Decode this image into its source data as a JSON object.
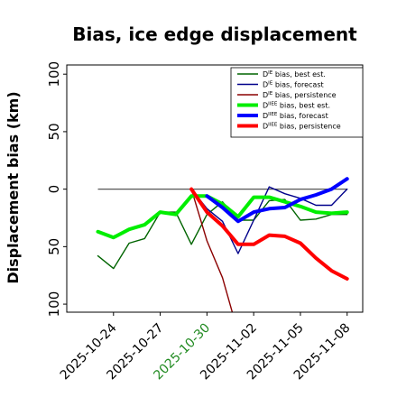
{
  "chart_data": {
    "type": "line",
    "title": "Bias, ice edge displacement",
    "xlabel": "",
    "ylabel": "Displacement bias (km)",
    "xlim": [
      "2025-10-21",
      "2025-11-09"
    ],
    "ylim": [
      -107,
      108
    ],
    "yticks": [
      100,
      50,
      0,
      -50,
      -100
    ],
    "yticklabels": [
      "100",
      "50",
      "0",
      "50",
      "100"
    ],
    "xticks": [
      "2025-10-24",
      "2025-10-27",
      "2025-10-30",
      "2025-11-02",
      "2025-11-05",
      "2025-11-08"
    ],
    "xticklabels": [
      "2025-10-24",
      "2025-10-27",
      "2025-10-30",
      "2025-11-02",
      "2025-11-05",
      "2025-11-08"
    ],
    "highlight_tick": "2025-10-30",
    "highlight_color": "#228b22",
    "grid": false,
    "legend_position": "top-right",
    "reference_line": {
      "y": 0,
      "x_start": "2025-10-23",
      "x_end": "2025-11-08",
      "color": "#555555"
    },
    "series": [
      {
        "name": "D^IE bias, best est.",
        "color": "#006400",
        "width": 1.4,
        "x": [
          "2025-10-23",
          "2025-10-24",
          "2025-10-25",
          "2025-10-26",
          "2025-10-27",
          "2025-10-28",
          "2025-10-29",
          "2025-10-30",
          "2025-10-31",
          "2025-11-01",
          "2025-11-02",
          "2025-11-03",
          "2025-11-04",
          "2025-11-05",
          "2025-11-06",
          "2025-11-07",
          "2025-11-08"
        ],
        "y": [
          -58,
          -69,
          -47,
          -43,
          -20,
          -20,
          -48,
          -22,
          -11,
          -27,
          -27,
          -10,
          -9,
          -27,
          -26,
          -22,
          -22
        ]
      },
      {
        "name": "D^IE bias, forecast",
        "color": "#00008b",
        "width": 1.4,
        "x": [
          "2025-10-29",
          "2025-10-30",
          "2025-10-31",
          "2025-11-01",
          "2025-11-02",
          "2025-11-03",
          "2025-11-04",
          "2025-11-05",
          "2025-11-06",
          "2025-11-07",
          "2025-11-08"
        ],
        "y": [
          0,
          -17,
          -28,
          -56,
          -27,
          2,
          -4,
          -8,
          -14,
          -14,
          0
        ]
      },
      {
        "name": "D^IE bias, persistence",
        "color": "#8b0000",
        "width": 1.4,
        "x": [
          "2025-10-29",
          "2025-10-30",
          "2025-10-31",
          "2025-11-01"
        ],
        "y": [
          0,
          -45,
          -77,
          -125
        ]
      },
      {
        "name": "D^IIEE bias, best est.",
        "color": "#00ee00",
        "width": 4,
        "x": [
          "2025-10-23",
          "2025-10-24",
          "2025-10-25",
          "2025-10-26",
          "2025-10-27",
          "2025-10-28",
          "2025-10-29",
          "2025-10-30",
          "2025-10-31",
          "2025-11-01",
          "2025-11-02",
          "2025-11-03",
          "2025-11-04",
          "2025-11-05",
          "2025-11-06",
          "2025-11-07",
          "2025-11-08"
        ],
        "y": [
          -37,
          -42,
          -35,
          -31,
          -20,
          -22,
          -6,
          -6,
          -13,
          -24,
          -7,
          -7,
          -11,
          -15,
          -20,
          -21,
          -20
        ]
      },
      {
        "name": "D^IIEE bias, forecast",
        "color": "#0000ff",
        "width": 4,
        "x": [
          "2025-10-30",
          "2025-10-31",
          "2025-11-01",
          "2025-11-02",
          "2025-11-03",
          "2025-11-04",
          "2025-11-05",
          "2025-11-06",
          "2025-11-07",
          "2025-11-08"
        ],
        "y": [
          -6,
          -16,
          -28,
          -20,
          -17,
          -16,
          -9,
          -5,
          0,
          9
        ]
      },
      {
        "name": "D^IIEE bias, persistence",
        "color": "#ff0000",
        "width": 4,
        "x": [
          "2025-10-29",
          "2025-10-30",
          "2025-10-31",
          "2025-11-01",
          "2025-11-02",
          "2025-11-03",
          "2025-11-04",
          "2025-11-05",
          "2025-11-06",
          "2025-11-07",
          "2025-11-08"
        ],
        "y": [
          0,
          -20,
          -32,
          -48,
          -48,
          -40,
          -41,
          -47,
          -60,
          -71,
          -78
        ]
      }
    ],
    "legend": [
      {
        "base": "D",
        "sup": "IE",
        "text": " bias, best est."
      },
      {
        "base": "D",
        "sup": "IE",
        "text": " bias, forecast"
      },
      {
        "base": "D",
        "sup": "IE",
        "text": " bias, persistence"
      },
      {
        "base": "D",
        "sup": "IIEE",
        "text": " bias, best est."
      },
      {
        "base": "D",
        "sup": "IIEE",
        "text": " bias, forecast"
      },
      {
        "base": "D",
        "sup": "IIEE",
        "text": " bias, persistence"
      }
    ]
  }
}
